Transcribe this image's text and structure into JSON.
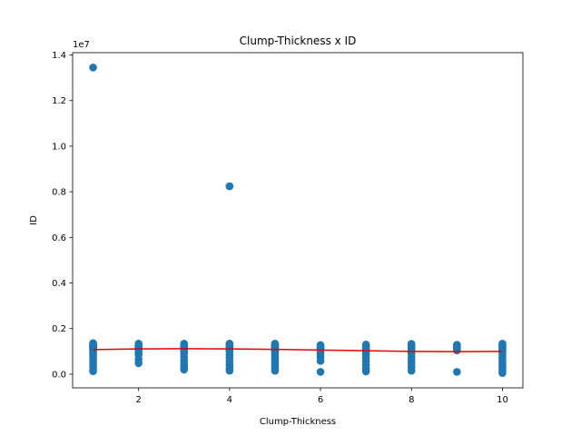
{
  "chart_data": {
    "type": "scatter",
    "title": "Clump-Thickness x ID",
    "xlabel": "Clump-Thickness",
    "ylabel": "ID",
    "offset_text": "1e7",
    "xlim": [
      0.55,
      10.45
    ],
    "ylim": [
      -0.06,
      1.41
    ],
    "y_units_note": "y values in units of 1e7",
    "xticks": [
      2,
      4,
      6,
      8,
      10
    ],
    "xtick_labels": [
      "2",
      "4",
      "6",
      "8",
      "10"
    ],
    "yticks": [
      0.0,
      0.2,
      0.4,
      0.6,
      0.8,
      1.0,
      1.2,
      1.4
    ],
    "ytick_labels": [
      "0.0",
      "0.2",
      "0.4",
      "0.6",
      "0.8",
      "1.0",
      "1.2",
      "1.4"
    ],
    "grid": false,
    "legend": "none",
    "colors": {
      "points": "#1f77b4",
      "trend": "#e60000",
      "axes": "#000000"
    },
    "series": [
      {
        "type": "scatter",
        "x": [
          1,
          1,
          1,
          1,
          1,
          1,
          1,
          1,
          1,
          1,
          1,
          1,
          1,
          1,
          1,
          1,
          1,
          1,
          1,
          1,
          1,
          1,
          1,
          2,
          2,
          2,
          2,
          2,
          2,
          2,
          2,
          2,
          2,
          2,
          3,
          3,
          3,
          3,
          3,
          3,
          3,
          3,
          3,
          3,
          3,
          3,
          3,
          3,
          3,
          3,
          4,
          4,
          4,
          4,
          4,
          4,
          4,
          4,
          4,
          4,
          4,
          4,
          4,
          4,
          4,
          4,
          5,
          5,
          5,
          5,
          5,
          5,
          5,
          5,
          5,
          5,
          5,
          5,
          5,
          5,
          5,
          5,
          5,
          5,
          5,
          5,
          5,
          6,
          6,
          6,
          6,
          6,
          6,
          6,
          6,
          6,
          6,
          7,
          7,
          7,
          7,
          7,
          7,
          7,
          7,
          7,
          7,
          7,
          7,
          7,
          8,
          8,
          8,
          8,
          8,
          8,
          8,
          8,
          8,
          8,
          8,
          8,
          8,
          8,
          9,
          9,
          9,
          9,
          9,
          9,
          9,
          10,
          10,
          10,
          10,
          10,
          10,
          10,
          10,
          10,
          10,
          10,
          10,
          10,
          10,
          10,
          10,
          10
        ],
        "y": [
          1.345,
          0.013,
          0.025,
          0.035,
          0.045,
          0.055,
          0.065,
          0.075,
          0.085,
          0.095,
          0.102,
          0.107,
          0.112,
          0.115,
          0.118,
          0.121,
          0.124,
          0.126,
          0.128,
          0.13,
          0.132,
          0.134,
          0.136,
          0.048,
          0.065,
          0.085,
          0.095,
          0.105,
          0.11,
          0.115,
          0.12,
          0.125,
          0.13,
          0.134,
          0.02,
          0.032,
          0.045,
          0.06,
          0.075,
          0.09,
          0.1,
          0.105,
          0.11,
          0.115,
          0.118,
          0.121,
          0.124,
          0.127,
          0.13,
          0.134,
          0.824,
          0.015,
          0.025,
          0.04,
          0.055,
          0.07,
          0.085,
          0.1,
          0.105,
          0.11,
          0.115,
          0.119,
          0.123,
          0.127,
          0.131,
          0.134,
          0.015,
          0.025,
          0.035,
          0.045,
          0.055,
          0.065,
          0.075,
          0.085,
          0.095,
          0.1,
          0.105,
          0.109,
          0.113,
          0.116,
          0.119,
          0.122,
          0.125,
          0.128,
          0.13,
          0.132,
          0.134,
          0.01,
          0.058,
          0.075,
          0.09,
          0.1,
          0.107,
          0.113,
          0.118,
          0.123,
          0.128,
          0.012,
          0.025,
          0.04,
          0.055,
          0.07,
          0.085,
          0.095,
          0.103,
          0.109,
          0.115,
          0.12,
          0.125,
          0.13,
          0.015,
          0.03,
          0.045,
          0.06,
          0.075,
          0.09,
          0.1,
          0.106,
          0.111,
          0.116,
          0.121,
          0.125,
          0.129,
          0.133,
          0.01,
          0.104,
          0.112,
          0.118,
          0.122,
          0.126,
          0.129,
          0.005,
          0.015,
          0.025,
          0.035,
          0.045,
          0.055,
          0.065,
          0.075,
          0.085,
          0.095,
          0.103,
          0.109,
          0.115,
          0.12,
          0.125,
          0.13,
          0.134
        ]
      },
      {
        "type": "line",
        "x": [
          1,
          2,
          3,
          4,
          5,
          6,
          7,
          8,
          9,
          10
        ],
        "y": [
          0.108,
          0.111,
          0.112,
          0.111,
          0.109,
          0.106,
          0.103,
          0.1,
          0.099,
          0.1
        ]
      }
    ]
  }
}
